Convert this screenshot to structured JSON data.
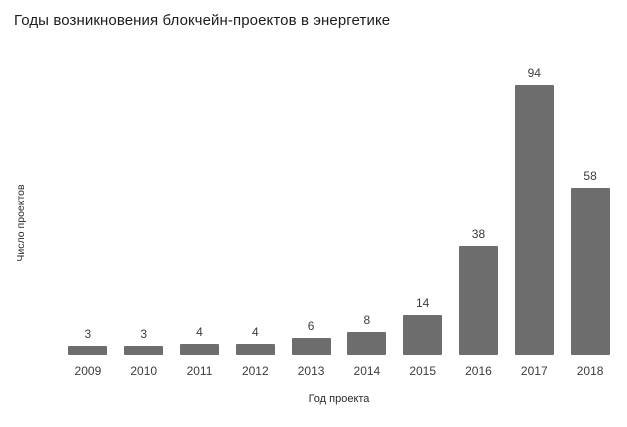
{
  "chart_data": {
    "type": "bar",
    "title": "Годы возникновения блокчейн-проектов в энергетике",
    "xlabel": "Год проекта",
    "ylabel": "Число проектов",
    "categories": [
      "2009",
      "2010",
      "2011",
      "2012",
      "2013",
      "2014",
      "2015",
      "2016",
      "2017",
      "2018"
    ],
    "values": [
      3,
      3,
      4,
      4,
      6,
      8,
      14,
      38,
      94,
      58
    ],
    "bar_color": "#6d6d6d",
    "value_labels_shown": true,
    "gridlines": false,
    "axes_visible": false,
    "legend": "none",
    "background_color": "#ffffff",
    "text_color": "#3c3c3c"
  }
}
